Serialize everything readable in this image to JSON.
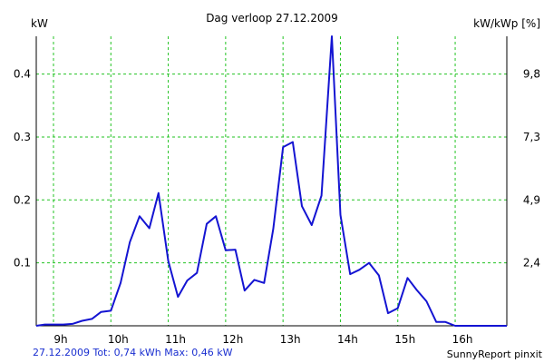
{
  "chart_data": {
    "type": "line",
    "title": "Dag  verloop 27.12.2009",
    "ylabel_left": "kW",
    "ylabel_right": "kW/kWp [%]",
    "xlim": [
      8.7,
      16.9
    ],
    "ylim": [
      0,
      0.46
    ],
    "x_ticks": [
      {
        "value": 9,
        "label": "9h"
      },
      {
        "value": 10,
        "label": "10h"
      },
      {
        "value": 11,
        "label": "11h"
      },
      {
        "value": 12,
        "label": "12h"
      },
      {
        "value": 13,
        "label": "13h"
      },
      {
        "value": 14,
        "label": "14h"
      },
      {
        "value": 15,
        "label": "15h"
      },
      {
        "value": 16,
        "label": "16h"
      }
    ],
    "y_ticks_left": [
      {
        "value": 0.1,
        "label": "0.1"
      },
      {
        "value": 0.2,
        "label": "0.2"
      },
      {
        "value": 0.3,
        "label": "0.3"
      },
      {
        "value": 0.4,
        "label": "0.4"
      }
    ],
    "y_ticks_right": [
      {
        "value": 0.1,
        "label": "2,4"
      },
      {
        "value": 0.2,
        "label": "4,9"
      },
      {
        "value": 0.3,
        "label": "7,3"
      },
      {
        "value": 0.4,
        "label": "9,8"
      }
    ],
    "grid": true,
    "series": [
      {
        "color": "#1414d2",
        "x": [
          8.7,
          8.85,
          9.0,
          9.17,
          9.33,
          9.5,
          9.67,
          9.83,
          10.0,
          10.17,
          10.33,
          10.5,
          10.67,
          10.83,
          11.0,
          11.17,
          11.33,
          11.5,
          11.67,
          11.83,
          12.0,
          12.17,
          12.33,
          12.5,
          12.67,
          12.83,
          13.0,
          13.17,
          13.33,
          13.5,
          13.67,
          13.85,
          14.0,
          14.17,
          14.33,
          14.5,
          14.67,
          14.83,
          15.0,
          15.17,
          15.33,
          15.5,
          15.67,
          15.83,
          16.0,
          16.17,
          16.33,
          16.5,
          16.67,
          16.9
        ],
        "y": [
          0.0,
          0.002,
          0.002,
          0.002,
          0.003,
          0.008,
          0.011,
          0.022,
          0.024,
          0.068,
          0.133,
          0.174,
          0.155,
          0.211,
          0.103,
          0.046,
          0.072,
          0.084,
          0.162,
          0.174,
          0.12,
          0.121,
          0.056,
          0.073,
          0.068,
          0.154,
          0.284,
          0.292,
          0.19,
          0.16,
          0.207,
          0.46,
          0.176,
          0.082,
          0.089,
          0.1,
          0.08,
          0.02,
          0.028,
          0.076,
          0.057,
          0.039,
          0.006,
          0.006,
          0.0,
          0.0,
          0.0,
          0.0,
          0.0,
          0.0
        ]
      }
    ],
    "footer_left": "27.12.2009 Tot: 0,74 kWh Max: 0,46 kW",
    "footer_right": "SunnyReport pinxit"
  }
}
